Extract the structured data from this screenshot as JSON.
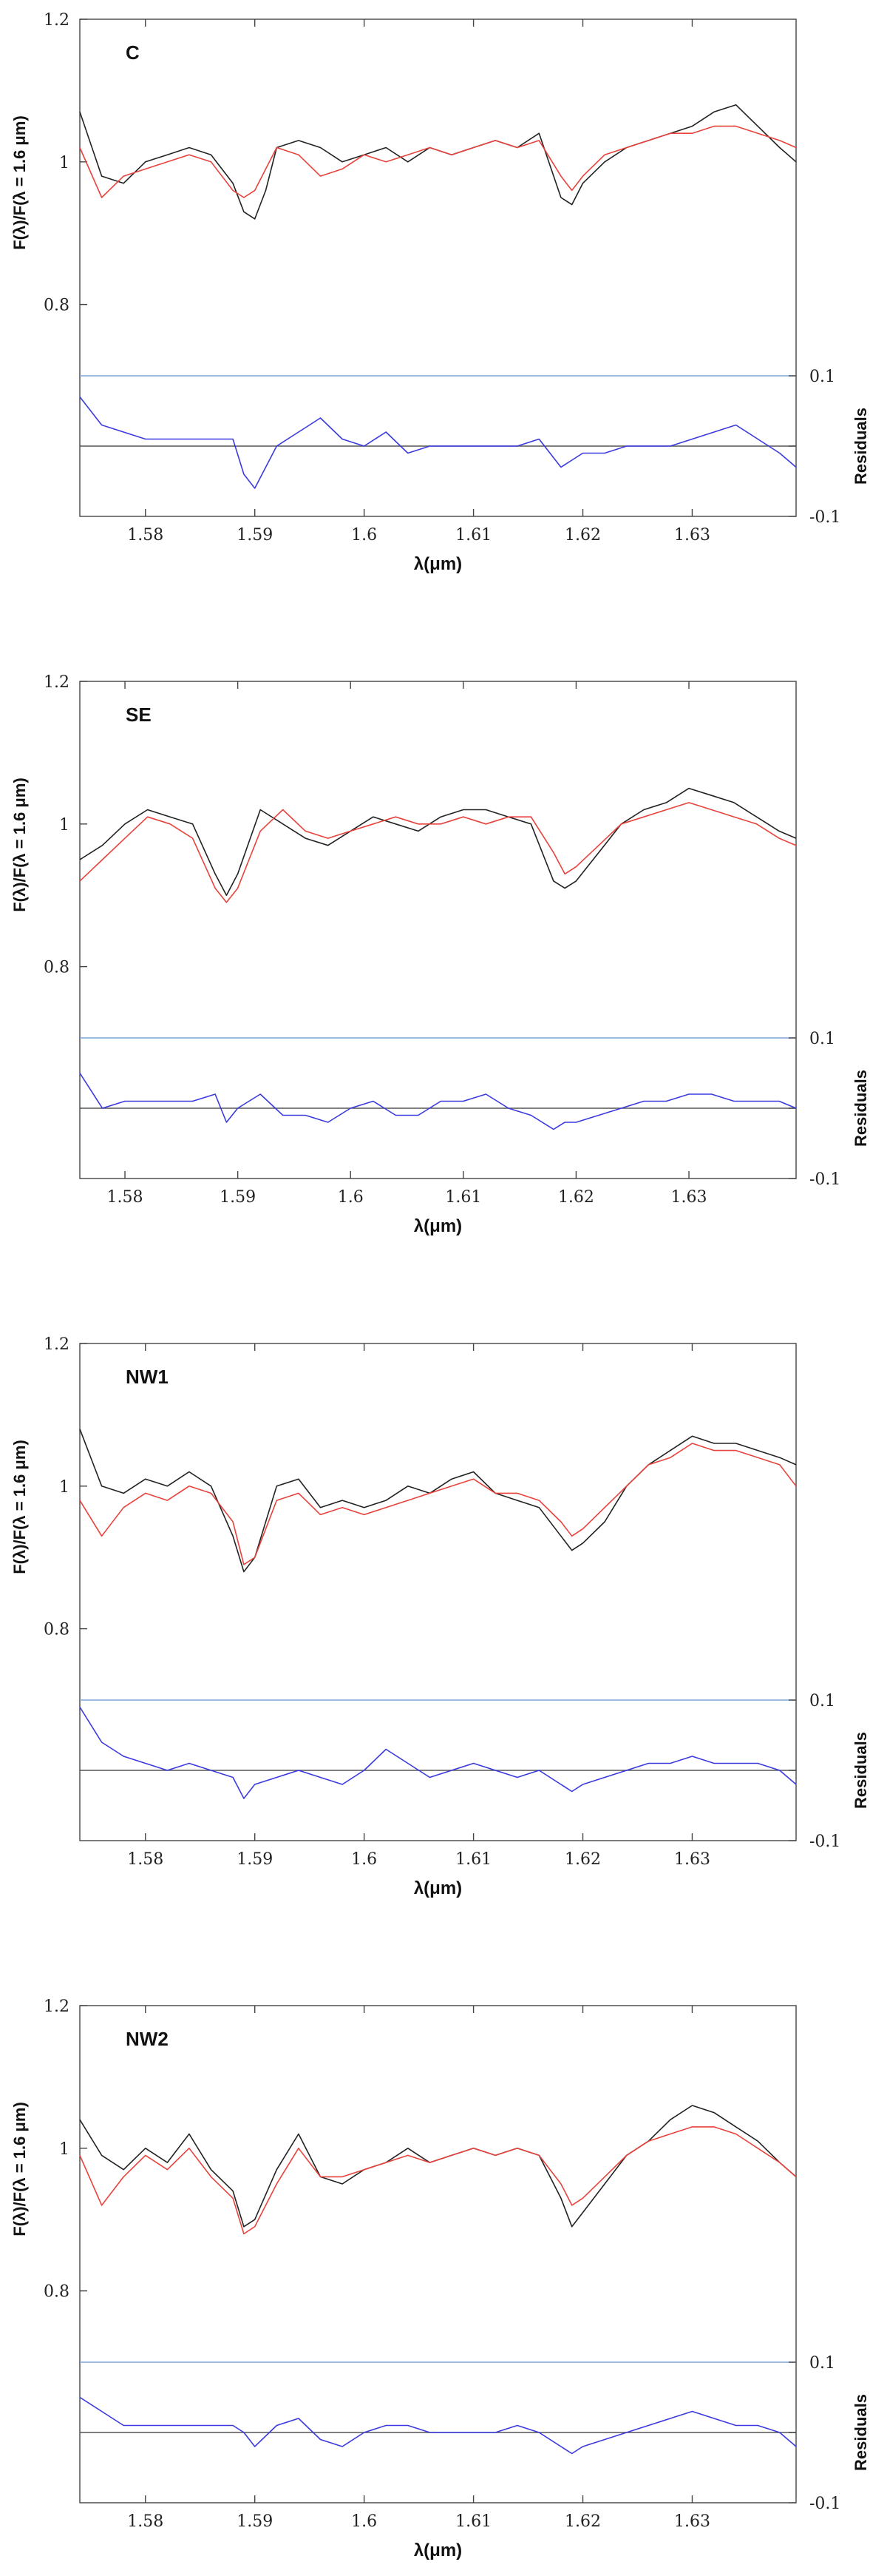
{
  "chart_data": [
    {
      "type": "line",
      "label": "C",
      "xlabel": "λ(μm)",
      "ylabel": "F(λ)/F(λ = 1.6 μm)",
      "ylabel_right": "Residuals",
      "xlim": [
        1.574,
        1.6395
      ],
      "ylim": [
        0.7,
        1.2
      ],
      "xticks": [
        "1.58",
        "1.59",
        "1.6",
        "1.61",
        "1.62",
        "1.63"
      ],
      "yticks": [
        "1.2",
        "1",
        "0.8"
      ],
      "residual_ticks": [
        "0.1",
        "0",
        "-0.1"
      ],
      "residual_lim": [
        -0.1,
        0.1
      ],
      "series": [
        {
          "key": "observed",
          "color": "#222222",
          "x": [
            1.574,
            1.576,
            1.578,
            1.58,
            1.582,
            1.584,
            1.586,
            1.588,
            1.589,
            1.59,
            1.591,
            1.592,
            1.594,
            1.596,
            1.598,
            1.6,
            1.602,
            1.604,
            1.606,
            1.608,
            1.61,
            1.612,
            1.614,
            1.616,
            1.618,
            1.619,
            1.62,
            1.622,
            1.624,
            1.626,
            1.628,
            1.63,
            1.632,
            1.634,
            1.636,
            1.638,
            1.6395
          ],
          "y": [
            1.07,
            0.98,
            0.97,
            1.0,
            1.01,
            1.02,
            1.01,
            0.97,
            0.93,
            0.92,
            0.96,
            1.02,
            1.03,
            1.02,
            1.0,
            1.01,
            1.02,
            1.0,
            1.02,
            1.01,
            1.02,
            1.03,
            1.02,
            1.04,
            0.95,
            0.94,
            0.97,
            1.0,
            1.02,
            1.03,
            1.04,
            1.05,
            1.07,
            1.08,
            1.05,
            1.02,
            1.0
          ]
        },
        {
          "key": "model",
          "color": "#e8423c",
          "x": [
            1.574,
            1.576,
            1.578,
            1.58,
            1.582,
            1.584,
            1.586,
            1.588,
            1.589,
            1.59,
            1.591,
            1.592,
            1.594,
            1.596,
            1.598,
            1.6,
            1.602,
            1.604,
            1.606,
            1.608,
            1.61,
            1.612,
            1.614,
            1.616,
            1.618,
            1.619,
            1.62,
            1.622,
            1.624,
            1.626,
            1.628,
            1.63,
            1.632,
            1.634,
            1.636,
            1.638,
            1.6395
          ],
          "y": [
            1.02,
            0.95,
            0.98,
            0.99,
            1.0,
            1.01,
            1.0,
            0.96,
            0.95,
            0.96,
            0.99,
            1.02,
            1.01,
            0.98,
            0.99,
            1.01,
            1.0,
            1.01,
            1.02,
            1.01,
            1.02,
            1.03,
            1.02,
            1.03,
            0.98,
            0.96,
            0.98,
            1.01,
            1.02,
            1.03,
            1.04,
            1.04,
            1.05,
            1.05,
            1.04,
            1.03,
            1.02
          ]
        },
        {
          "key": "residuals",
          "color": "#3a3ae0",
          "x": [
            1.574,
            1.576,
            1.578,
            1.58,
            1.582,
            1.584,
            1.586,
            1.588,
            1.589,
            1.59,
            1.591,
            1.592,
            1.594,
            1.596,
            1.598,
            1.6,
            1.602,
            1.604,
            1.606,
            1.608,
            1.61,
            1.612,
            1.614,
            1.616,
            1.618,
            1.619,
            1.62,
            1.622,
            1.624,
            1.626,
            1.628,
            1.63,
            1.632,
            1.634,
            1.636,
            1.638,
            1.6395
          ],
          "y": [
            0.07,
            0.03,
            0.02,
            0.01,
            0.01,
            0.01,
            0.01,
            0.01,
            -0.04,
            -0.06,
            -0.03,
            0.0,
            0.02,
            0.04,
            0.01,
            0.0,
            0.02,
            -0.01,
            0.0,
            0.0,
            0.0,
            0.0,
            0.0,
            0.01,
            -0.03,
            -0.02,
            -0.01,
            -0.01,
            0.0,
            0.0,
            0.0,
            0.01,
            0.02,
            0.03,
            0.01,
            -0.01,
            -0.03
          ]
        }
      ]
    },
    {
      "type": "line",
      "label": "SE",
      "xlabel": "λ(μm)",
      "ylabel": "F(λ)/F(λ = 1.6 μm)",
      "ylabel_right": "Residuals",
      "xlim": [
        1.576,
        1.6395
      ],
      "ylim": [
        0.7,
        1.2
      ],
      "xticks": [
        "1.58",
        "1.59",
        "1.6",
        "1.61",
        "1.62",
        "1.63"
      ],
      "yticks": [
        "1.2",
        "1",
        "0.8"
      ],
      "residual_ticks": [
        "0.1",
        "0",
        "-0.1"
      ],
      "residual_lim": [
        -0.1,
        0.1
      ],
      "series": [
        {
          "key": "observed",
          "color": "#222222",
          "x": [
            1.576,
            1.578,
            1.58,
            1.582,
            1.584,
            1.586,
            1.588,
            1.589,
            1.59,
            1.592,
            1.594,
            1.596,
            1.598,
            1.6,
            1.602,
            1.604,
            1.606,
            1.608,
            1.61,
            1.612,
            1.614,
            1.616,
            1.618,
            1.619,
            1.62,
            1.622,
            1.624,
            1.626,
            1.628,
            1.63,
            1.632,
            1.634,
            1.636,
            1.638,
            1.6395
          ],
          "y": [
            0.95,
            0.97,
            1.0,
            1.02,
            1.01,
            1.0,
            0.93,
            0.9,
            0.93,
            1.02,
            1.0,
            0.98,
            0.97,
            0.99,
            1.01,
            1.0,
            0.99,
            1.01,
            1.02,
            1.02,
            1.01,
            1.0,
            0.92,
            0.91,
            0.92,
            0.96,
            1.0,
            1.02,
            1.03,
            1.05,
            1.04,
            1.03,
            1.01,
            0.99,
            0.98
          ]
        },
        {
          "key": "model",
          "color": "#e8423c",
          "x": [
            1.576,
            1.578,
            1.58,
            1.582,
            1.584,
            1.586,
            1.588,
            1.589,
            1.59,
            1.592,
            1.594,
            1.596,
            1.598,
            1.6,
            1.602,
            1.604,
            1.606,
            1.608,
            1.61,
            1.612,
            1.614,
            1.616,
            1.618,
            1.619,
            1.62,
            1.622,
            1.624,
            1.626,
            1.628,
            1.63,
            1.632,
            1.634,
            1.636,
            1.638,
            1.6395
          ],
          "y": [
            0.92,
            0.95,
            0.98,
            1.01,
            1.0,
            0.98,
            0.91,
            0.89,
            0.91,
            0.99,
            1.02,
            0.99,
            0.98,
            0.99,
            1.0,
            1.01,
            1.0,
            1.0,
            1.01,
            1.0,
            1.01,
            1.01,
            0.96,
            0.93,
            0.94,
            0.97,
            1.0,
            1.01,
            1.02,
            1.03,
            1.02,
            1.01,
            1.0,
            0.98,
            0.97
          ]
        },
        {
          "key": "residuals",
          "color": "#3a3ae0",
          "x": [
            1.576,
            1.578,
            1.58,
            1.582,
            1.584,
            1.586,
            1.588,
            1.589,
            1.59,
            1.592,
            1.594,
            1.596,
            1.598,
            1.6,
            1.602,
            1.604,
            1.606,
            1.608,
            1.61,
            1.612,
            1.614,
            1.616,
            1.618,
            1.619,
            1.62,
            1.622,
            1.624,
            1.626,
            1.628,
            1.63,
            1.632,
            1.634,
            1.636,
            1.638,
            1.6395
          ],
          "y": [
            0.05,
            0.0,
            0.01,
            0.01,
            0.01,
            0.01,
            0.02,
            -0.02,
            0.0,
            0.02,
            -0.01,
            -0.01,
            -0.02,
            0.0,
            0.01,
            -0.01,
            -0.01,
            0.01,
            0.01,
            0.02,
            0.0,
            -0.01,
            -0.03,
            -0.02,
            -0.02,
            -0.01,
            0.0,
            0.01,
            0.01,
            0.02,
            0.02,
            0.01,
            0.01,
            0.01,
            0.0
          ]
        }
      ]
    },
    {
      "type": "line",
      "label": "NW1",
      "xlabel": "λ(μm)",
      "ylabel": "F(λ)/F(λ = 1.6 μm)",
      "ylabel_right": "Residuals",
      "xlim": [
        1.574,
        1.6395
      ],
      "ylim": [
        0.7,
        1.2
      ],
      "xticks": [
        "1.58",
        "1.59",
        "1.6",
        "1.61",
        "1.62",
        "1.63"
      ],
      "yticks": [
        "1.2",
        "1",
        "0.8"
      ],
      "residual_ticks": [
        "0.1",
        "0",
        "-0.1"
      ],
      "residual_lim": [
        -0.1,
        0.1
      ],
      "series": [
        {
          "key": "observed",
          "color": "#222222",
          "x": [
            1.574,
            1.576,
            1.578,
            1.58,
            1.582,
            1.584,
            1.586,
            1.588,
            1.589,
            1.59,
            1.592,
            1.594,
            1.596,
            1.598,
            1.6,
            1.602,
            1.604,
            1.606,
            1.608,
            1.61,
            1.612,
            1.614,
            1.616,
            1.618,
            1.619,
            1.62,
            1.622,
            1.624,
            1.626,
            1.628,
            1.63,
            1.632,
            1.634,
            1.636,
            1.638,
            1.6395
          ],
          "y": [
            1.08,
            1.0,
            0.99,
            1.01,
            1.0,
            1.02,
            1.0,
            0.93,
            0.88,
            0.9,
            1.0,
            1.01,
            0.97,
            0.98,
            0.97,
            0.98,
            1.0,
            0.99,
            1.01,
            1.02,
            0.99,
            0.98,
            0.97,
            0.93,
            0.91,
            0.92,
            0.95,
            1.0,
            1.03,
            1.05,
            1.07,
            1.06,
            1.06,
            1.05,
            1.04,
            1.03
          ]
        },
        {
          "key": "model",
          "color": "#e8423c",
          "x": [
            1.574,
            1.576,
            1.578,
            1.58,
            1.582,
            1.584,
            1.586,
            1.588,
            1.589,
            1.59,
            1.592,
            1.594,
            1.596,
            1.598,
            1.6,
            1.602,
            1.604,
            1.606,
            1.608,
            1.61,
            1.612,
            1.614,
            1.616,
            1.618,
            1.619,
            1.62,
            1.622,
            1.624,
            1.626,
            1.628,
            1.63,
            1.632,
            1.634,
            1.636,
            1.638,
            1.6395
          ],
          "y": [
            0.98,
            0.93,
            0.97,
            0.99,
            0.98,
            1.0,
            0.99,
            0.95,
            0.89,
            0.9,
            0.98,
            0.99,
            0.96,
            0.97,
            0.96,
            0.97,
            0.98,
            0.99,
            1.0,
            1.01,
            0.99,
            0.99,
            0.98,
            0.95,
            0.93,
            0.94,
            0.97,
            1.0,
            1.03,
            1.04,
            1.06,
            1.05,
            1.05,
            1.04,
            1.03,
            1.0
          ]
        },
        {
          "key": "residuals",
          "color": "#3a3ae0",
          "x": [
            1.574,
            1.576,
            1.578,
            1.58,
            1.582,
            1.584,
            1.586,
            1.588,
            1.589,
            1.59,
            1.592,
            1.594,
            1.596,
            1.598,
            1.6,
            1.602,
            1.604,
            1.606,
            1.608,
            1.61,
            1.612,
            1.614,
            1.616,
            1.618,
            1.619,
            1.62,
            1.622,
            1.624,
            1.626,
            1.628,
            1.63,
            1.632,
            1.634,
            1.636,
            1.638,
            1.6395
          ],
          "y": [
            0.09,
            0.04,
            0.02,
            0.01,
            0.0,
            0.01,
            0.0,
            -0.01,
            -0.04,
            -0.02,
            -0.01,
            0.0,
            -0.01,
            -0.02,
            0.0,
            0.03,
            0.01,
            -0.01,
            0.0,
            0.01,
            0.0,
            -0.01,
            0.0,
            -0.02,
            -0.03,
            -0.02,
            -0.01,
            0.0,
            0.01,
            0.01,
            0.02,
            0.01,
            0.01,
            0.01,
            0.0,
            -0.02
          ]
        }
      ]
    },
    {
      "type": "line",
      "label": "NW2",
      "xlabel": "λ(μm)",
      "ylabel": "F(λ)/F(λ = 1.6 μm)",
      "ylabel_right": "Residuals",
      "xlim": [
        1.574,
        1.6395
      ],
      "ylim": [
        0.7,
        1.2
      ],
      "xticks": [
        "1.58",
        "1.59",
        "1.6",
        "1.61",
        "1.62",
        "1.63"
      ],
      "yticks": [
        "1.2",
        "1",
        "0.8"
      ],
      "residual_ticks": [
        "0.1",
        "0",
        "-0.1"
      ],
      "residual_lim": [
        -0.1,
        0.1
      ],
      "series": [
        {
          "key": "observed",
          "color": "#222222",
          "x": [
            1.574,
            1.576,
            1.578,
            1.58,
            1.582,
            1.584,
            1.586,
            1.588,
            1.589,
            1.59,
            1.592,
            1.594,
            1.596,
            1.598,
            1.6,
            1.602,
            1.604,
            1.606,
            1.608,
            1.61,
            1.612,
            1.614,
            1.616,
            1.618,
            1.619,
            1.62,
            1.622,
            1.624,
            1.626,
            1.628,
            1.63,
            1.632,
            1.634,
            1.636,
            1.638,
            1.6395
          ],
          "y": [
            1.04,
            0.99,
            0.97,
            1.0,
            0.98,
            1.02,
            0.97,
            0.94,
            0.89,
            0.9,
            0.97,
            1.02,
            0.96,
            0.95,
            0.97,
            0.98,
            1.0,
            0.98,
            0.99,
            1.0,
            0.99,
            1.0,
            0.99,
            0.93,
            0.89,
            0.91,
            0.95,
            0.99,
            1.01,
            1.04,
            1.06,
            1.05,
            1.03,
            1.01,
            0.98,
            0.96
          ]
        },
        {
          "key": "model",
          "color": "#e8423c",
          "x": [
            1.574,
            1.576,
            1.578,
            1.58,
            1.582,
            1.584,
            1.586,
            1.588,
            1.589,
            1.59,
            1.592,
            1.594,
            1.596,
            1.598,
            1.6,
            1.602,
            1.604,
            1.606,
            1.608,
            1.61,
            1.612,
            1.614,
            1.616,
            1.618,
            1.619,
            1.62,
            1.622,
            1.624,
            1.626,
            1.628,
            1.63,
            1.632,
            1.634,
            1.636,
            1.638,
            1.6395
          ],
          "y": [
            0.99,
            0.92,
            0.96,
            0.99,
            0.97,
            1.0,
            0.96,
            0.93,
            0.88,
            0.89,
            0.95,
            1.0,
            0.96,
            0.96,
            0.97,
            0.98,
            0.99,
            0.98,
            0.99,
            1.0,
            0.99,
            1.0,
            0.99,
            0.95,
            0.92,
            0.93,
            0.96,
            0.99,
            1.01,
            1.02,
            1.03,
            1.03,
            1.02,
            1.0,
            0.98,
            0.96
          ]
        },
        {
          "key": "residuals",
          "color": "#3a3ae0",
          "x": [
            1.574,
            1.576,
            1.578,
            1.58,
            1.582,
            1.584,
            1.586,
            1.588,
            1.589,
            1.59,
            1.592,
            1.594,
            1.596,
            1.598,
            1.6,
            1.602,
            1.604,
            1.606,
            1.608,
            1.61,
            1.612,
            1.614,
            1.616,
            1.618,
            1.619,
            1.62,
            1.622,
            1.624,
            1.626,
            1.628,
            1.63,
            1.632,
            1.634,
            1.636,
            1.638,
            1.6395
          ],
          "y": [
            0.05,
            0.03,
            0.01,
            0.01,
            0.01,
            0.01,
            0.01,
            0.01,
            0.0,
            -0.02,
            0.01,
            0.02,
            -0.01,
            -0.02,
            0.0,
            0.01,
            0.01,
            0.0,
            0.0,
            0.0,
            0.0,
            0.01,
            0.0,
            -0.02,
            -0.03,
            -0.02,
            -0.01,
            0.0,
            0.01,
            0.02,
            0.03,
            0.02,
            0.01,
            0.01,
            0.0,
            -0.02
          ]
        }
      ]
    }
  ]
}
